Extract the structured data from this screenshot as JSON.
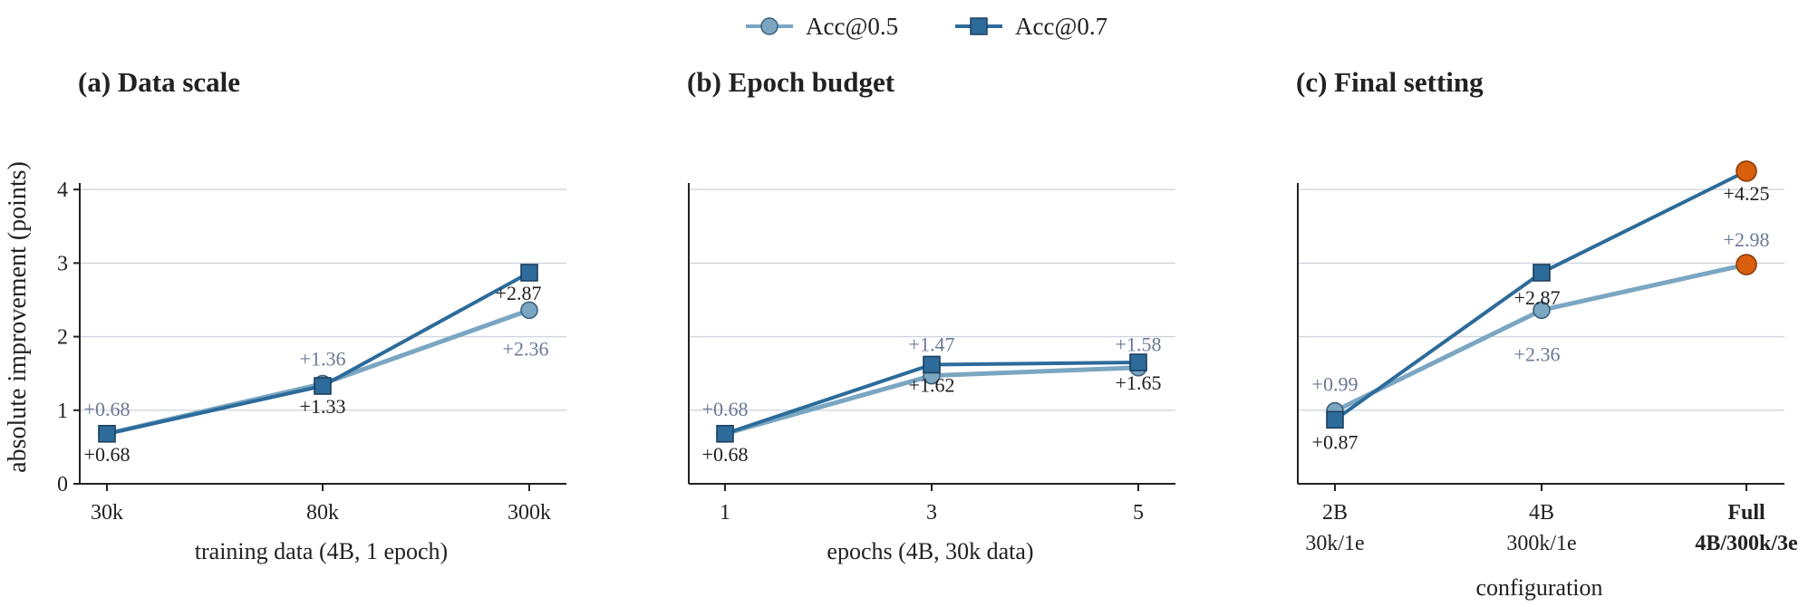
{
  "legend": [
    {
      "name": "Acc@0.5",
      "marker": "circle",
      "color": "#7aa6c2"
    },
    {
      "name": "Acc@0.7",
      "marker": "square",
      "color": "#2c6b9a"
    }
  ],
  "highlight_color": "#d95f0e",
  "ylabel": "absolute improvement (points)",
  "chart_data": [
    {
      "type": "line",
      "title": "(a) Data scale",
      "xlabel": "training data (4B, 1 epoch)",
      "categories": [
        "30k",
        "80k",
        "300k"
      ],
      "ylim": [
        0,
        4.4
      ],
      "yticks": [
        0,
        1,
        2,
        3,
        4
      ],
      "grid": true,
      "series": [
        {
          "name": "Acc@0.5",
          "values": [
            0.68,
            1.36,
            2.36
          ],
          "labels": [
            "+0.68",
            "+1.36",
            "+2.36"
          ]
        },
        {
          "name": "Acc@0.7",
          "values": [
            0.68,
            1.33,
            2.87
          ],
          "labels": [
            "+0.68",
            "+1.33",
            "+2.87"
          ]
        }
      ]
    },
    {
      "type": "line",
      "title": "(b) Epoch budget",
      "xlabel": "epochs (4B, 30k data)",
      "categories": [
        "1",
        "3",
        "5"
      ],
      "ylim": [
        0,
        4.4
      ],
      "grid": true,
      "series": [
        {
          "name": "Acc@0.5",
          "values": [
            0.68,
            1.47,
            1.58
          ],
          "labels": [
            "+0.68",
            "+1.47",
            "+1.58"
          ]
        },
        {
          "name": "Acc@0.7",
          "values": [
            0.68,
            1.62,
            1.65
          ],
          "labels": [
            "+0.68",
            "+1.62",
            "+1.65"
          ]
        }
      ]
    },
    {
      "type": "line",
      "title": "(c) Final setting",
      "xlabel": "configuration",
      "categories": [
        {
          "line1": "2B",
          "line2": "30k/1e",
          "bold": false
        },
        {
          "line1": "4B",
          "line2": "300k/1e",
          "bold": false
        },
        {
          "line1": "Full",
          "line2": "4B/300k/3e",
          "bold": true
        }
      ],
      "ylim": [
        0,
        4.4
      ],
      "grid": true,
      "highlight_last": true,
      "series": [
        {
          "name": "Acc@0.5",
          "values": [
            0.99,
            2.36,
            2.98
          ],
          "labels": [
            "+0.99",
            "+2.36",
            "+2.98"
          ]
        },
        {
          "name": "Acc@0.7",
          "values": [
            0.87,
            2.87,
            4.25
          ],
          "labels": [
            "+0.87",
            "+2.87",
            "+4.25"
          ]
        }
      ]
    }
  ]
}
